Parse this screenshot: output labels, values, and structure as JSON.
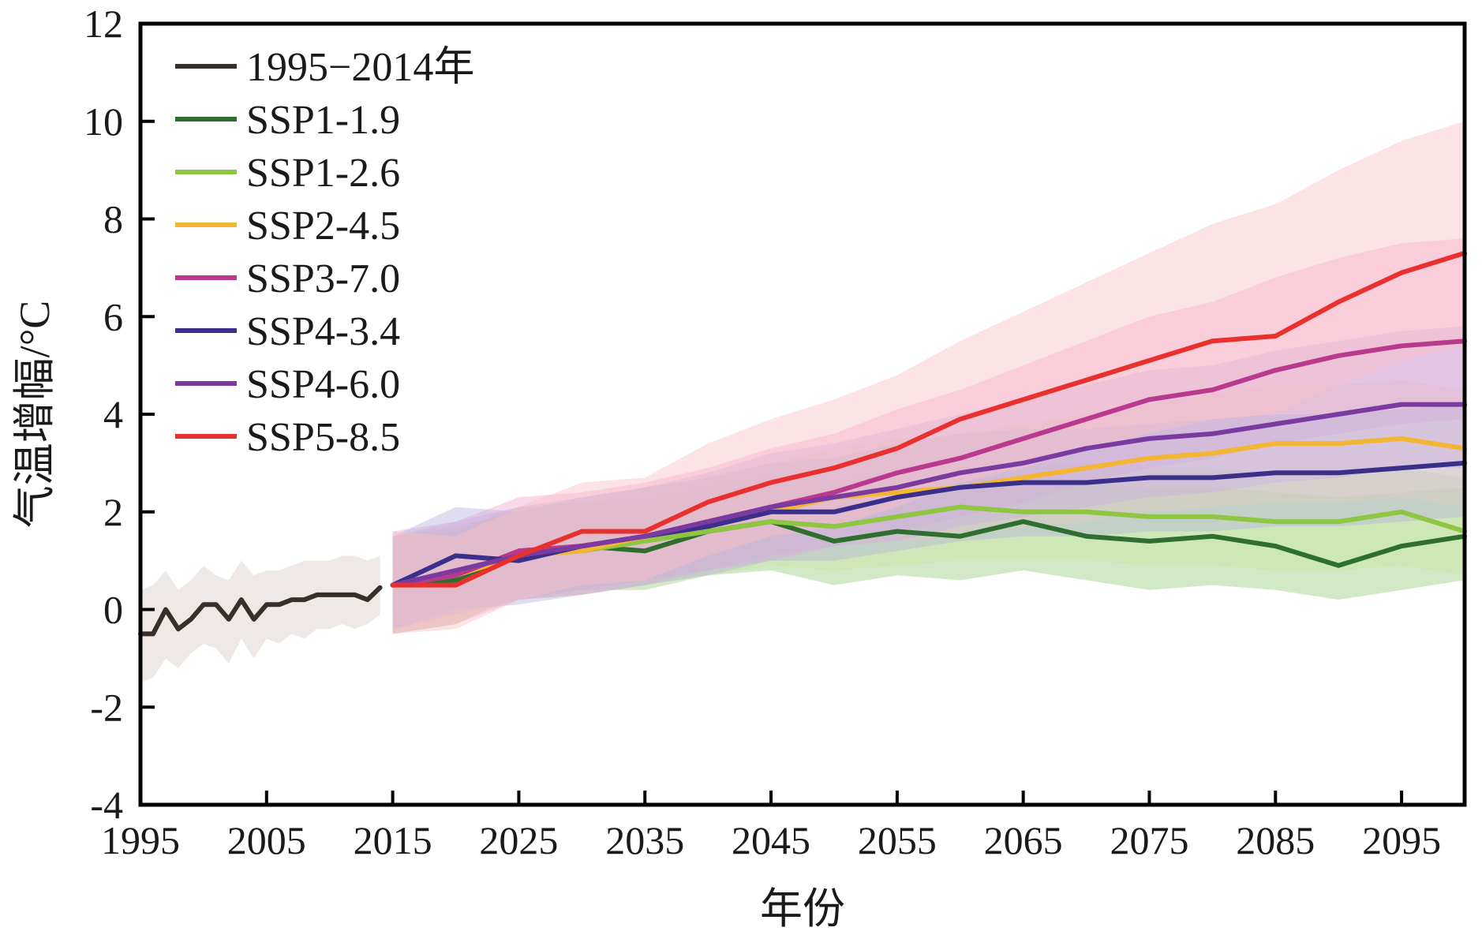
{
  "chart_data": {
    "type": "line",
    "xlabel": "年份",
    "ylabel": "气温增幅/°C",
    "xlim": [
      1995,
      2100
    ],
    "ylim": [
      -4,
      12
    ],
    "x_ticks": [
      1995,
      2005,
      2015,
      2025,
      2035,
      2045,
      2055,
      2065,
      2075,
      2085,
      2095
    ],
    "y_ticks": [
      -4,
      -2,
      0,
      2,
      4,
      6,
      8,
      10,
      12
    ],
    "legend_position": "top-left",
    "grid": false,
    "series": [
      {
        "name": "1995−2014年",
        "color": "#3a2e29",
        "band_color": "#d9cfc8",
        "x": [
          1995,
          1996,
          1997,
          1998,
          1999,
          2000,
          2001,
          2002,
          2003,
          2004,
          2005,
          2006,
          2007,
          2008,
          2009,
          2010,
          2011,
          2012,
          2013,
          2014
        ],
        "y": [
          -0.5,
          -0.5,
          0.0,
          -0.4,
          -0.2,
          0.1,
          0.1,
          -0.2,
          0.2,
          -0.2,
          0.1,
          0.1,
          0.2,
          0.2,
          0.3,
          0.3,
          0.3,
          0.3,
          0.2,
          0.45
        ],
        "lower": [
          -1.5,
          -1.4,
          -1.0,
          -1.2,
          -0.9,
          -0.7,
          -0.8,
          -1.1,
          -0.6,
          -1.0,
          -0.6,
          -0.7,
          -0.5,
          -0.6,
          -0.4,
          -0.4,
          -0.3,
          -0.4,
          -0.3,
          -0.1
        ],
        "upper": [
          0.4,
          0.5,
          0.8,
          0.4,
          0.6,
          0.9,
          0.7,
          0.6,
          1.0,
          0.7,
          0.8,
          0.8,
          0.9,
          1.0,
          1.0,
          1.0,
          1.1,
          1.1,
          1.0,
          1.1
        ]
      },
      {
        "name": "SSP1-1.9",
        "color": "#2e6e2f",
        "band_color": "#9ccf83",
        "x": [
          2015,
          2020,
          2025,
          2030,
          2035,
          2040,
          2045,
          2050,
          2055,
          2060,
          2065,
          2070,
          2075,
          2080,
          2085,
          2090,
          2095,
          2100
        ],
        "y": [
          0.5,
          0.6,
          1.2,
          1.3,
          1.2,
          1.6,
          1.8,
          1.4,
          1.6,
          1.5,
          1.8,
          1.5,
          1.4,
          1.5,
          1.3,
          0.9,
          1.3,
          1.5
        ],
        "lower": [
          -0.5,
          -0.3,
          0.3,
          0.4,
          0.4,
          0.7,
          0.8,
          0.5,
          0.7,
          0.6,
          0.8,
          0.6,
          0.4,
          0.5,
          0.4,
          0.2,
          0.4,
          0.6
        ],
        "upper": [
          1.5,
          1.6,
          2.1,
          2.2,
          2.1,
          2.5,
          2.7,
          2.5,
          2.6,
          2.6,
          2.8,
          2.6,
          2.5,
          2.5,
          2.4,
          2.3,
          2.4,
          2.5
        ]
      },
      {
        "name": "SSP1-2.6",
        "color": "#8ec642",
        "band_color": "#c7e4a4",
        "x": [
          2015,
          2020,
          2025,
          2030,
          2035,
          2040,
          2045,
          2050,
          2055,
          2060,
          2065,
          2070,
          2075,
          2080,
          2085,
          2090,
          2095,
          2100
        ],
        "y": [
          0.5,
          0.7,
          1.1,
          1.2,
          1.4,
          1.6,
          1.8,
          1.7,
          1.9,
          2.1,
          2.0,
          2.0,
          1.9,
          1.9,
          1.8,
          1.8,
          2.0,
          1.6
        ],
        "lower": [
          -0.4,
          -0.2,
          0.2,
          0.3,
          0.5,
          0.7,
          0.9,
          0.8,
          0.9,
          1.0,
          1.0,
          1.0,
          0.9,
          0.9,
          0.8,
          0.8,
          0.9,
          0.7
        ],
        "upper": [
          1.5,
          1.7,
          2.0,
          2.2,
          2.3,
          2.6,
          2.8,
          2.7,
          2.9,
          3.0,
          3.0,
          3.0,
          2.9,
          2.9,
          2.8,
          2.8,
          2.9,
          2.7
        ]
      },
      {
        "name": "SSP2-4.5",
        "color": "#f2b632",
        "band_color": "#fbe1a3",
        "x": [
          2015,
          2020,
          2025,
          2030,
          2035,
          2040,
          2045,
          2050,
          2055,
          2060,
          2065,
          2070,
          2075,
          2080,
          2085,
          2090,
          2095,
          2100
        ],
        "y": [
          0.5,
          0.7,
          1.1,
          1.2,
          1.5,
          1.7,
          2.0,
          2.3,
          2.4,
          2.5,
          2.7,
          2.9,
          3.1,
          3.2,
          3.4,
          3.4,
          3.5,
          3.3
        ],
        "lower": [
          -0.4,
          -0.2,
          0.2,
          0.3,
          0.6,
          0.8,
          1.1,
          1.3,
          1.4,
          1.5,
          1.7,
          1.8,
          2.0,
          2.1,
          2.2,
          2.2,
          2.3,
          2.1
        ],
        "upper": [
          1.5,
          1.7,
          2.0,
          2.2,
          2.5,
          2.7,
          3.0,
          3.3,
          3.5,
          3.6,
          3.8,
          4.0,
          4.2,
          4.4,
          4.6,
          4.6,
          4.7,
          4.5
        ]
      },
      {
        "name": "SSP3-7.0",
        "color": "#b9398f",
        "band_color": "#f1a9cf",
        "x": [
          2015,
          2020,
          2025,
          2030,
          2035,
          2040,
          2045,
          2050,
          2055,
          2060,
          2065,
          2070,
          2075,
          2080,
          2085,
          2090,
          2095,
          2100
        ],
        "y": [
          0.5,
          0.7,
          1.2,
          1.3,
          1.5,
          1.8,
          2.1,
          2.4,
          2.8,
          3.1,
          3.5,
          3.9,
          4.3,
          4.5,
          4.9,
          5.2,
          5.4,
          5.5
        ],
        "lower": [
          -0.5,
          -0.3,
          0.2,
          0.3,
          0.5,
          0.8,
          1.0,
          1.3,
          1.6,
          1.9,
          2.2,
          2.6,
          2.9,
          3.1,
          3.4,
          3.6,
          3.8,
          3.9
        ],
        "upper": [
          1.6,
          1.8,
          2.3,
          2.4,
          2.6,
          2.9,
          3.3,
          3.6,
          4.1,
          4.5,
          5.0,
          5.5,
          6.0,
          6.3,
          6.8,
          7.2,
          7.5,
          7.6
        ]
      },
      {
        "name": "SSP4-3.4",
        "color": "#3a2f8a",
        "band_color": "#b9b3dd",
        "x": [
          2015,
          2020,
          2025,
          2030,
          2035,
          2040,
          2045,
          2050,
          2055,
          2060,
          2065,
          2070,
          2075,
          2080,
          2085,
          2090,
          2095,
          2100
        ],
        "y": [
          0.5,
          1.1,
          1.0,
          1.3,
          1.5,
          1.7,
          2.0,
          2.0,
          2.3,
          2.5,
          2.6,
          2.6,
          2.7,
          2.7,
          2.8,
          2.8,
          2.9,
          3.0
        ],
        "lower": [
          -0.4,
          0.0,
          0.1,
          0.3,
          0.5,
          0.7,
          1.0,
          1.0,
          1.2,
          1.4,
          1.5,
          1.5,
          1.6,
          1.6,
          1.7,
          1.7,
          1.8,
          1.9
        ],
        "upper": [
          1.5,
          2.1,
          2.0,
          2.3,
          2.5,
          2.7,
          3.0,
          3.1,
          3.4,
          3.6,
          3.7,
          3.7,
          3.8,
          3.9,
          4.0,
          4.0,
          4.1,
          4.2
        ]
      },
      {
        "name": "SSP4-6.0",
        "color": "#7b3aa0",
        "band_color": "#cdb0df",
        "x": [
          2015,
          2020,
          2025,
          2030,
          2035,
          2040,
          2045,
          2050,
          2055,
          2060,
          2065,
          2070,
          2075,
          2080,
          2085,
          2090,
          2095,
          2100
        ],
        "y": [
          0.5,
          0.8,
          1.1,
          1.3,
          1.5,
          1.8,
          2.1,
          2.3,
          2.5,
          2.8,
          3.0,
          3.3,
          3.5,
          3.6,
          3.8,
          4.0,
          4.2,
          4.2
        ],
        "lower": [
          -0.4,
          -0.1,
          0.2,
          0.4,
          0.6,
          0.8,
          1.1,
          1.3,
          1.4,
          1.7,
          1.9,
          2.1,
          2.3,
          2.4,
          2.6,
          2.7,
          2.9,
          2.9
        ],
        "upper": [
          1.5,
          1.8,
          2.1,
          2.3,
          2.5,
          2.8,
          3.2,
          3.4,
          3.7,
          4.0,
          4.3,
          4.6,
          4.9,
          5.0,
          5.3,
          5.5,
          5.7,
          5.8
        ]
      },
      {
        "name": "SSP5-8.5",
        "color": "#e8312f",
        "band_color": "#f9c2c6",
        "x": [
          2015,
          2020,
          2025,
          2030,
          2035,
          2040,
          2045,
          2050,
          2055,
          2060,
          2065,
          2070,
          2075,
          2080,
          2085,
          2090,
          2095,
          2100
        ],
        "y": [
          0.5,
          0.5,
          1.1,
          1.6,
          1.6,
          2.2,
          2.6,
          2.9,
          3.3,
          3.9,
          4.3,
          4.7,
          5.1,
          5.5,
          5.6,
          6.3,
          6.9,
          7.3
        ],
        "lower": [
          -0.5,
          -0.4,
          0.2,
          0.5,
          0.6,
          1.1,
          1.5,
          1.7,
          2.1,
          2.6,
          2.9,
          3.3,
          3.6,
          3.9,
          4.0,
          4.6,
          5.1,
          5.4
        ],
        "upper": [
          1.6,
          1.5,
          2.1,
          2.6,
          2.7,
          3.4,
          3.9,
          4.3,
          4.8,
          5.5,
          6.1,
          6.7,
          7.3,
          7.9,
          8.3,
          9.0,
          9.6,
          10.0
        ]
      }
    ]
  }
}
